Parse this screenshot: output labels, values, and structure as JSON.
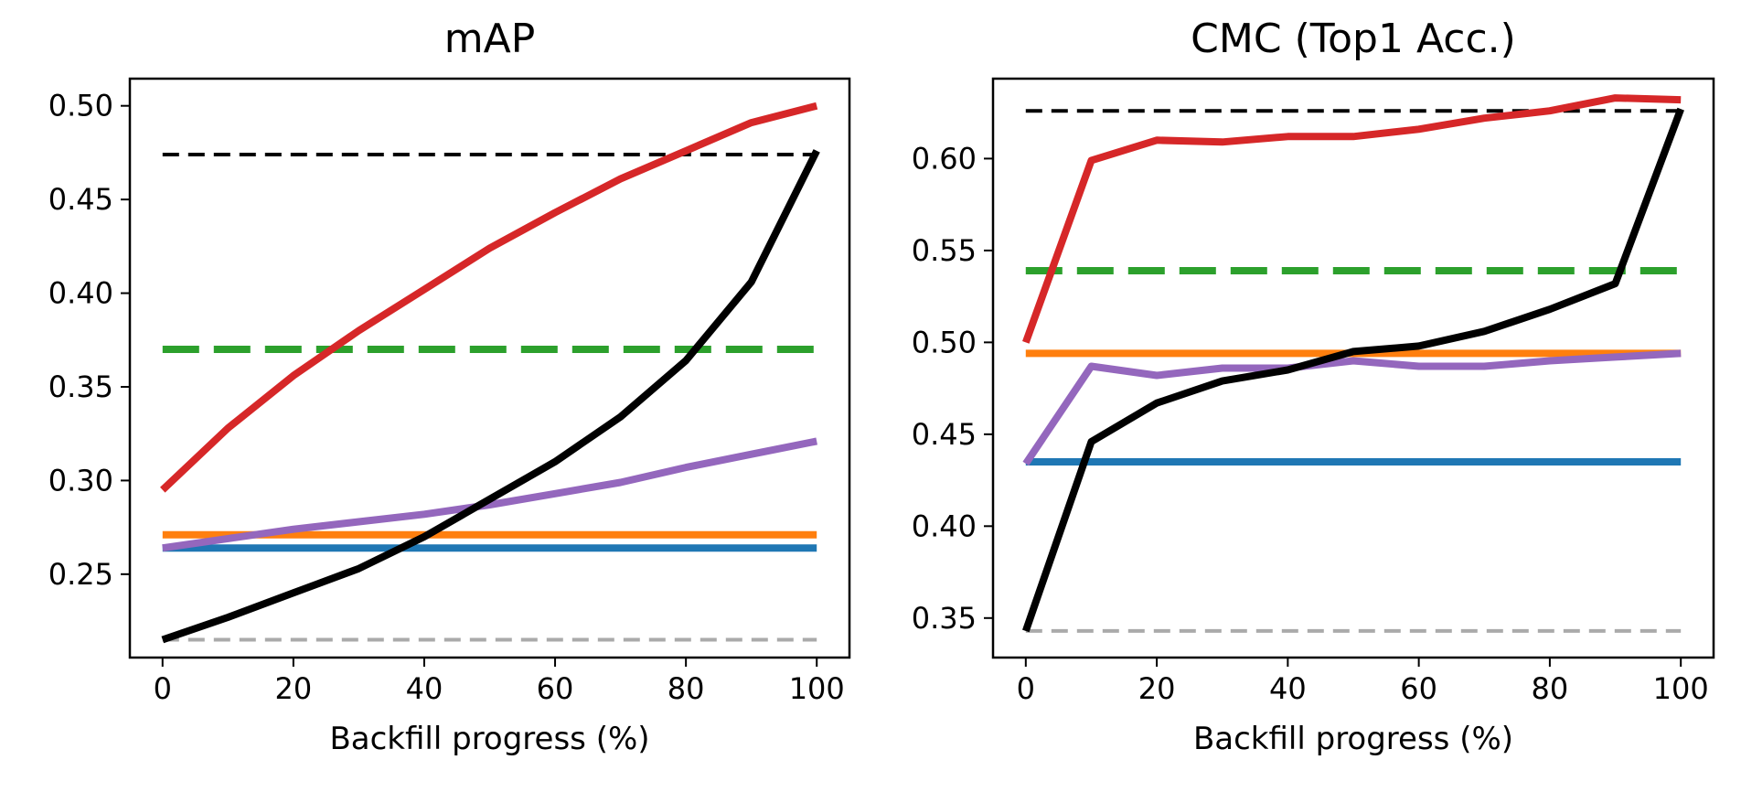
{
  "chart_data": [
    {
      "type": "line",
      "title": "mAP",
      "xlabel": "Backfill progress (%)",
      "ylabel": "",
      "xlim": [
        -5,
        105
      ],
      "ylim": [
        0.2055,
        0.5145
      ],
      "xticks": [
        0,
        20,
        40,
        60,
        80,
        100
      ],
      "xtick_labels": [
        "0",
        "20",
        "40",
        "60",
        "80",
        "100"
      ],
      "yticks": [
        0.25,
        0.3,
        0.35,
        0.4,
        0.45,
        0.5
      ],
      "ytick_labels": [
        "0.25",
        "0.30",
        "0.35",
        "0.40",
        "0.45",
        "0.50"
      ],
      "grid": false,
      "x": [
        0,
        10,
        20,
        30,
        40,
        50,
        60,
        70,
        80,
        90,
        100
      ],
      "series": [
        {
          "color": "#000000",
          "style": "dashed",
          "width": 4,
          "values": [
            0.474,
            0.474,
            0.474,
            0.474,
            0.474,
            0.474,
            0.474,
            0.474,
            0.474,
            0.474,
            0.474
          ]
        },
        {
          "color": "#2ca02c",
          "style": "dashed-thick",
          "width": 8,
          "values": [
            0.37,
            0.37,
            0.37,
            0.37,
            0.37,
            0.37,
            0.37,
            0.37,
            0.37,
            0.37,
            0.37
          ]
        },
        {
          "color": "#ff7f0e",
          "style": "solid",
          "width": 8,
          "values": [
            0.271,
            0.271,
            0.271,
            0.271,
            0.271,
            0.271,
            0.271,
            0.271,
            0.271,
            0.271,
            0.271
          ]
        },
        {
          "color": "#1f77b4",
          "style": "solid",
          "width": 8,
          "values": [
            0.264,
            0.264,
            0.264,
            0.264,
            0.264,
            0.264,
            0.264,
            0.264,
            0.264,
            0.264,
            0.264
          ]
        },
        {
          "color": "#aaaaaa",
          "style": "dashed",
          "width": 4,
          "values": [
            0.215,
            0.215,
            0.215,
            0.215,
            0.215,
            0.215,
            0.215,
            0.215,
            0.215,
            0.215,
            0.215
          ]
        },
        {
          "color": "#9467bd",
          "style": "solid",
          "width": 8,
          "values": [
            0.264,
            0.269,
            0.274,
            0.278,
            0.282,
            0.287,
            0.293,
            0.299,
            0.307,
            0.314,
            0.321
          ]
        },
        {
          "color": "#d62728",
          "style": "solid",
          "width": 8,
          "values": [
            0.295,
            0.328,
            0.356,
            0.38,
            0.402,
            0.424,
            0.443,
            0.461,
            0.476,
            0.491,
            0.5
          ]
        },
        {
          "color": "#000000",
          "style": "solid",
          "width": 8,
          "values": [
            0.215,
            0.227,
            0.24,
            0.253,
            0.27,
            0.29,
            0.31,
            0.334,
            0.364,
            0.406,
            0.476
          ]
        }
      ]
    },
    {
      "type": "line",
      "title": "CMC (Top1 Acc.)",
      "xlabel": "Backfill progress (%)",
      "ylabel": "",
      "xlim": [
        -5,
        105
      ],
      "ylim": [
        0.3285,
        0.6435
      ],
      "xticks": [
        0,
        20,
        40,
        60,
        80,
        100
      ],
      "xtick_labels": [
        "0",
        "20",
        "40",
        "60",
        "80",
        "100"
      ],
      "yticks": [
        0.35,
        0.4,
        0.45,
        0.5,
        0.55,
        0.6
      ],
      "ytick_labels": [
        "0.35",
        "0.40",
        "0.45",
        "0.50",
        "0.55",
        "0.60"
      ],
      "grid": false,
      "x": [
        0,
        10,
        20,
        30,
        40,
        50,
        60,
        70,
        80,
        90,
        100
      ],
      "series": [
        {
          "color": "#000000",
          "style": "dashed",
          "width": 4,
          "values": [
            0.626,
            0.626,
            0.626,
            0.626,
            0.626,
            0.626,
            0.626,
            0.626,
            0.626,
            0.626,
            0.626
          ]
        },
        {
          "color": "#2ca02c",
          "style": "dashed-thick",
          "width": 8,
          "values": [
            0.539,
            0.539,
            0.539,
            0.539,
            0.539,
            0.539,
            0.539,
            0.539,
            0.539,
            0.539,
            0.539
          ]
        },
        {
          "color": "#ff7f0e",
          "style": "solid",
          "width": 8,
          "values": [
            0.494,
            0.494,
            0.494,
            0.494,
            0.494,
            0.494,
            0.494,
            0.494,
            0.494,
            0.494,
            0.494
          ]
        },
        {
          "color": "#1f77b4",
          "style": "solid",
          "width": 8,
          "values": [
            0.435,
            0.435,
            0.435,
            0.435,
            0.435,
            0.435,
            0.435,
            0.435,
            0.435,
            0.435,
            0.435
          ]
        },
        {
          "color": "#aaaaaa",
          "style": "dashed",
          "width": 4,
          "values": [
            0.343,
            0.343,
            0.343,
            0.343,
            0.343,
            0.343,
            0.343,
            0.343,
            0.343,
            0.343,
            0.343
          ]
        },
        {
          "color": "#9467bd",
          "style": "solid",
          "width": 8,
          "values": [
            0.434,
            0.487,
            0.482,
            0.486,
            0.486,
            0.49,
            0.487,
            0.487,
            0.49,
            0.492,
            0.494
          ]
        },
        {
          "color": "#d62728",
          "style": "solid",
          "width": 8,
          "values": [
            0.5,
            0.599,
            0.61,
            0.609,
            0.612,
            0.612,
            0.616,
            0.622,
            0.626,
            0.633,
            0.632
          ]
        },
        {
          "color": "#000000",
          "style": "solid",
          "width": 8,
          "values": [
            0.343,
            0.446,
            0.467,
            0.479,
            0.485,
            0.495,
            0.498,
            0.506,
            0.518,
            0.532,
            0.627
          ]
        }
      ]
    }
  ]
}
